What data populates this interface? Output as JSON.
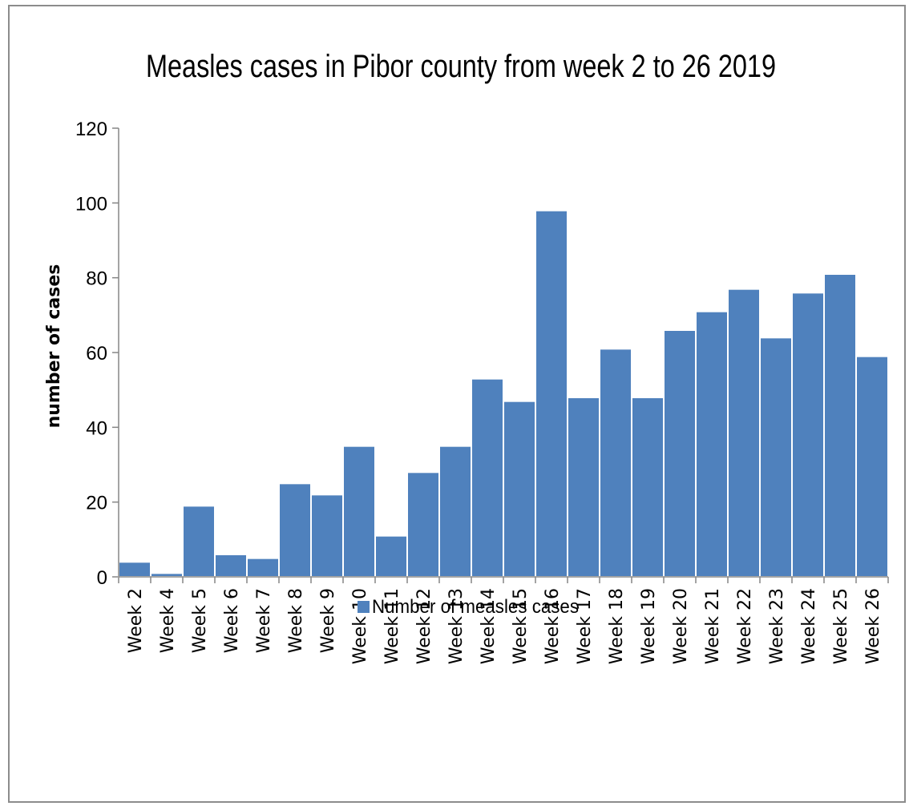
{
  "chart_data": {
    "type": "bar",
    "title": "Measles cases in Pibor county from week 2 to 26 2019",
    "xlabel": "",
    "ylabel": "number of cases",
    "ylim": [
      0,
      120
    ],
    "yticks": [
      0,
      20,
      40,
      60,
      80,
      100,
      120
    ],
    "grid": false,
    "legend_position": "bottom",
    "categories": [
      "Week 2",
      "Week 4",
      "Week 5",
      "Week 6",
      "Week 7",
      "Week 8",
      "Week 9",
      "Week 10",
      "Week 11",
      "Week 12",
      "Week 13",
      "Week 14",
      "Week 15",
      "Week 16",
      "Week 17",
      "Week 18",
      "Week 19",
      "Week 20",
      "Week 21",
      "Week 22",
      "Week 23",
      "Week 24",
      "Week 25",
      "Week 26"
    ],
    "series": [
      {
        "name": "Number of measles cases",
        "color": "#4f81bd",
        "values": [
          4,
          1,
          19,
          6,
          5,
          25,
          22,
          35,
          11,
          28,
          35,
          53,
          47,
          98,
          48,
          61,
          48,
          66,
          71,
          77,
          64,
          76,
          81,
          59
        ]
      }
    ]
  }
}
